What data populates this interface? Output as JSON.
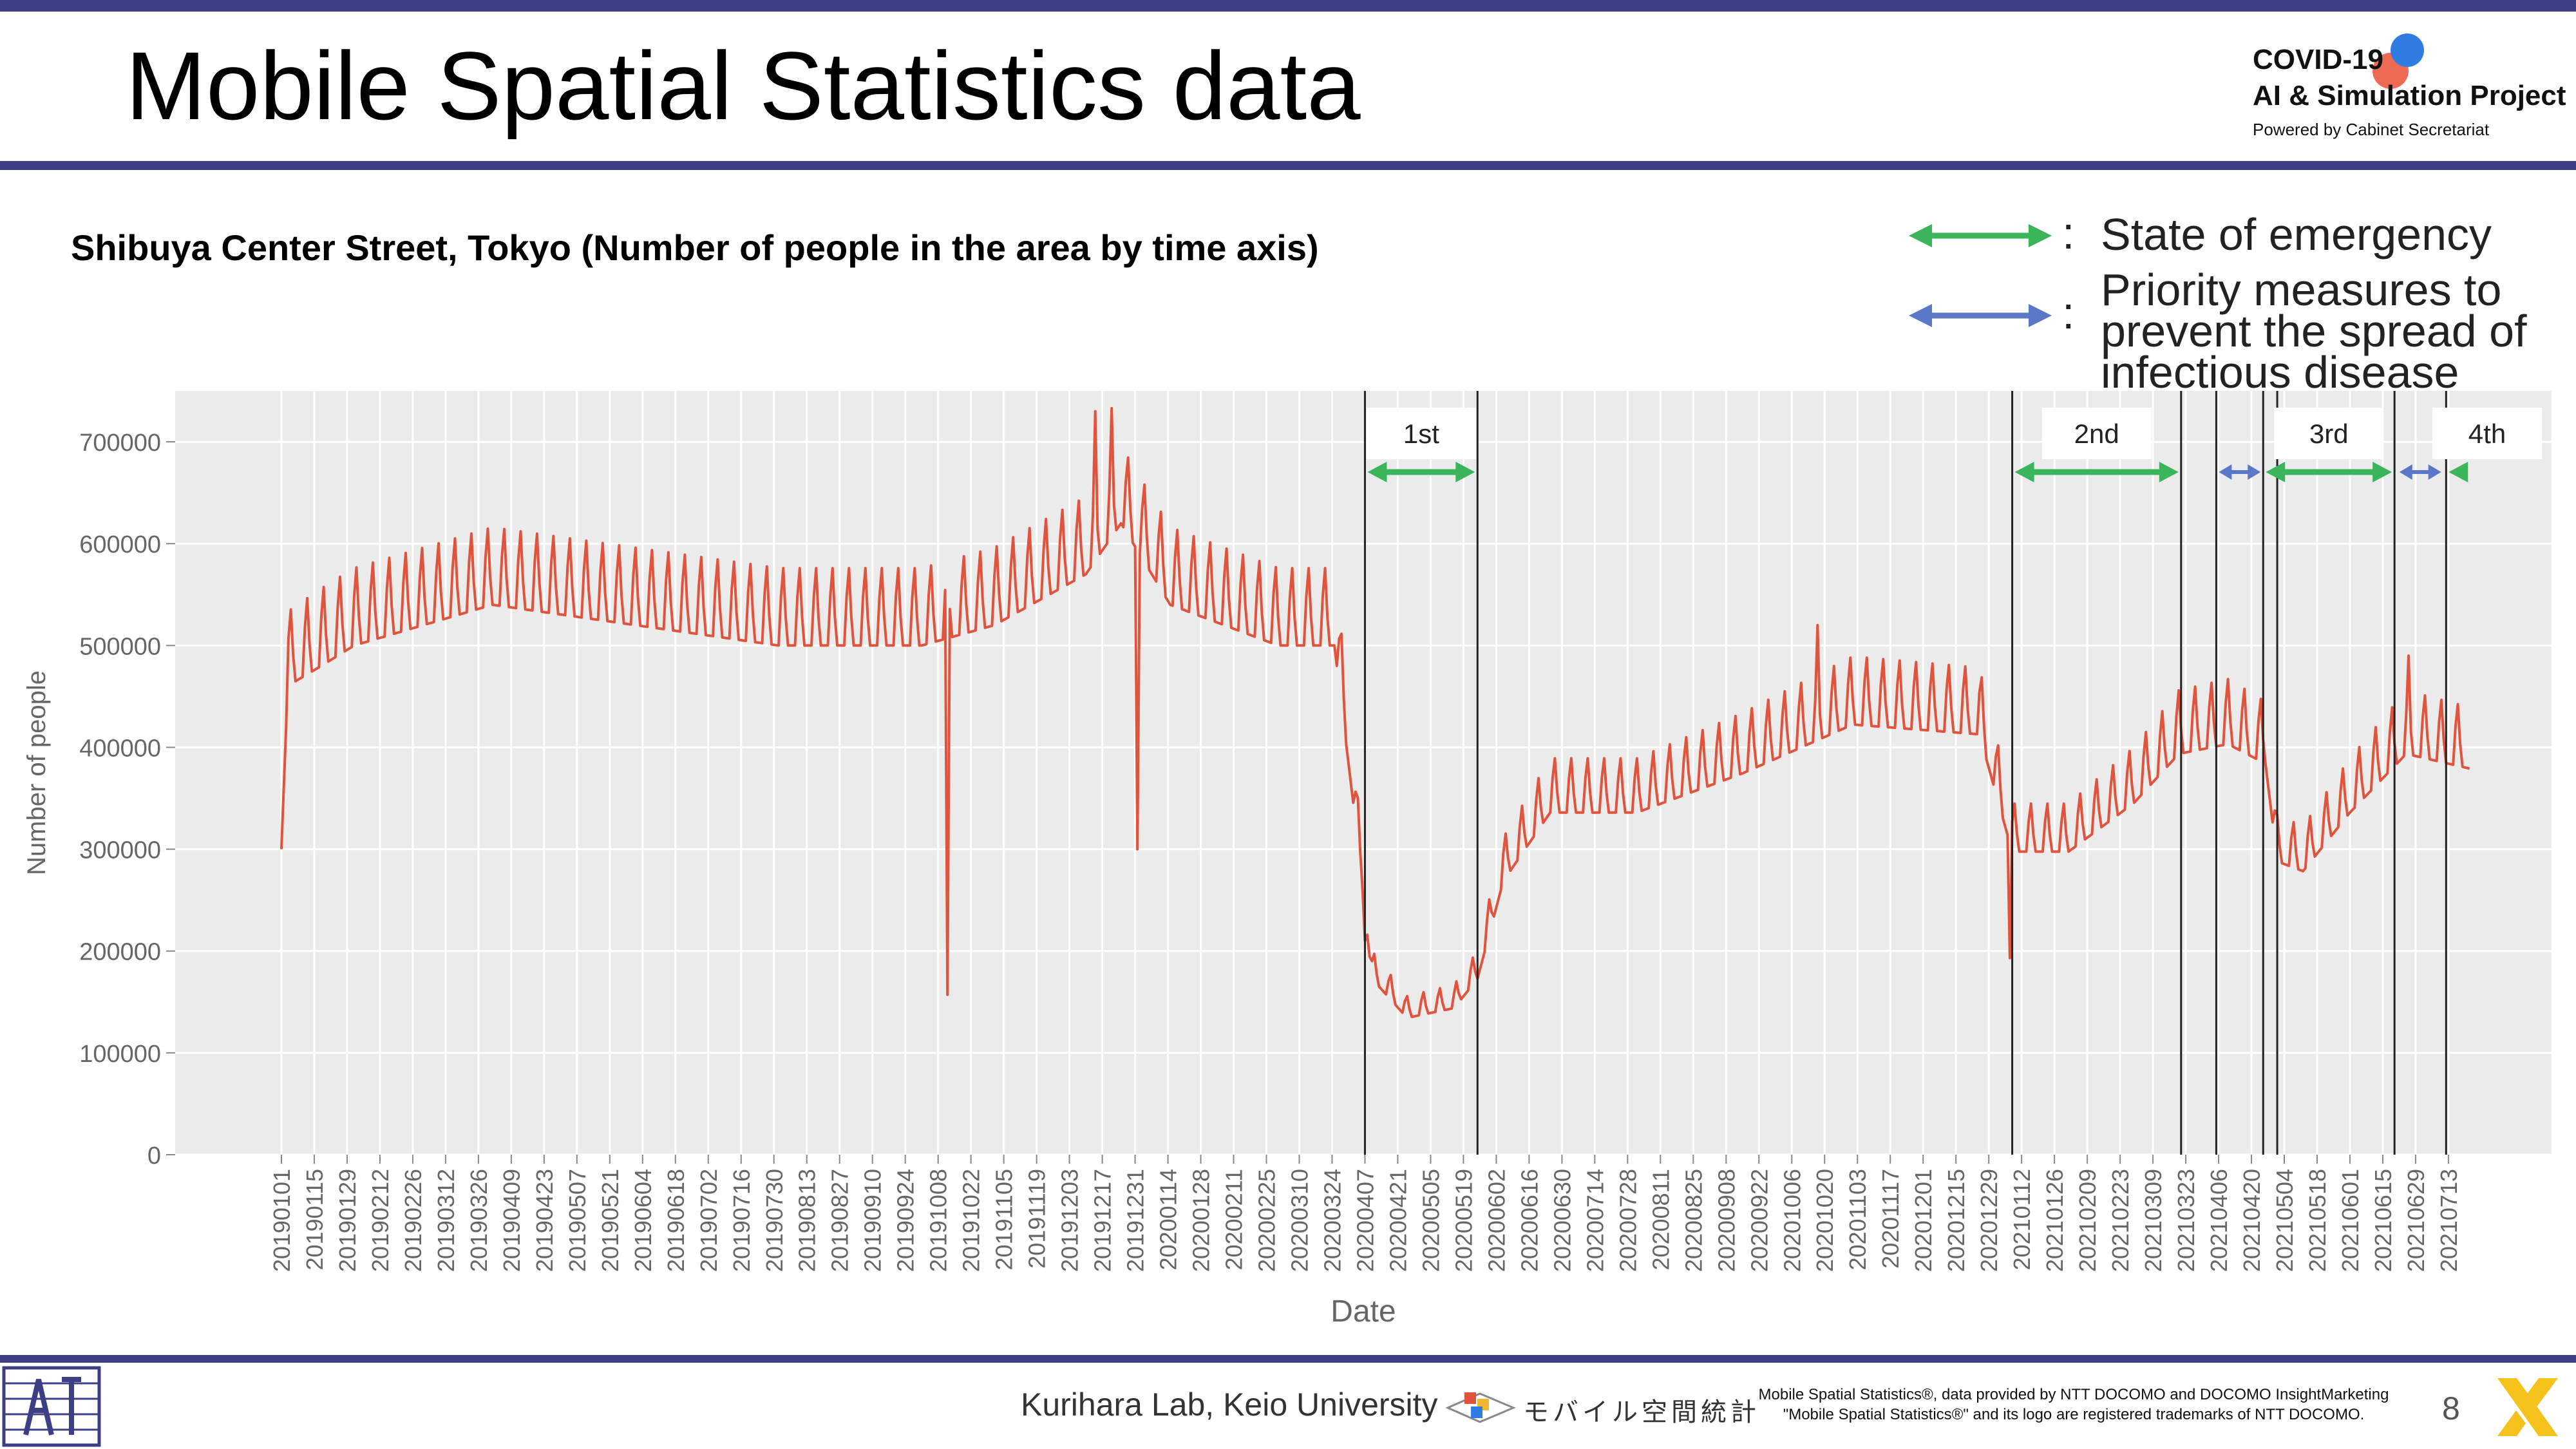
{
  "header": {
    "title": "Mobile Spatial Statistics data",
    "logo_line1": "COVID-19",
    "logo_line2": "AI & Simulation Project",
    "logo_line3": "Powered by Cabinet Secretariat"
  },
  "subtitle": "Shibuya Center Street, Tokyo (Number of people in the area by time axis)",
  "legend": {
    "colon": ":",
    "emergency_label": "State of emergency",
    "priority_label_lines": [
      "Priority measures to",
      "prevent the spread of",
      "infectious disease"
    ],
    "emergency_color": "#3bb55a",
    "priority_color": "#5a78c7"
  },
  "footer": {
    "lab": "Kurihara Lab, Keio University",
    "jp_logo_text": "モバイル空間統計",
    "note_line1": "Mobile Spatial Statistics®, data provided by NTT DOCOMO and DOCOMO InsightMarketing",
    "note_line2": "\"Mobile Spatial Statistics®\" and its logo are registered trademarks of NTT DOCOMO.",
    "page_number": "8"
  },
  "chart_data": {
    "type": "line",
    "title": "Shibuya Center Street, Tokyo (Number of people in the area by time axis)",
    "xlabel": "Date",
    "ylabel": "Number of people",
    "ylim": [
      0,
      750000
    ],
    "yticks": [
      0,
      100000,
      200000,
      300000,
      400000,
      500000,
      600000,
      700000
    ],
    "ytick_labels": [
      "0",
      "100000",
      "200000",
      "300000",
      "400000",
      "500000",
      "600000",
      "700000"
    ],
    "x_start": "20190101",
    "x_end": "20210722",
    "xtick_labels": [
      "20190101",
      "20190115",
      "20190129",
      "20190212",
      "20190226",
      "20190312",
      "20190326",
      "20190409",
      "20190423",
      "20190507",
      "20190521",
      "20190604",
      "20190618",
      "20190702",
      "20190716",
      "20190730",
      "20190813",
      "20190827",
      "20190910",
      "20190924",
      "20191008",
      "20191022",
      "20191105",
      "20191119",
      "20191203",
      "20191217",
      "20191231",
      "20200114",
      "20200128",
      "20200211",
      "20200225",
      "20200310",
      "20200324",
      "20200407",
      "20200421",
      "20200505",
      "20200519",
      "20200602",
      "20200616",
      "20200630",
      "20200714",
      "20200728",
      "20200811",
      "20200825",
      "20200908",
      "20200922",
      "20201006",
      "20201020",
      "20201103",
      "20201117",
      "20201201",
      "20201215",
      "20201229",
      "20210112",
      "20210126",
      "20210209",
      "20210223",
      "20210309",
      "20210323",
      "20210406",
      "20210420",
      "20210504",
      "20210518",
      "20210601",
      "20210615",
      "20210629",
      "20210713"
    ],
    "line_color": "#e0533d",
    "background": "#ebebeb",
    "grid": true,
    "series_anchor_points": [
      {
        "date": "20190101",
        "value": 300000
      },
      {
        "date": "20190104",
        "value": 480000
      },
      {
        "date": "20190201",
        "value": 520000
      },
      {
        "date": "20190401",
        "value": 560000
      },
      {
        "date": "20190601",
        "value": 540000
      },
      {
        "date": "20190801",
        "value": 520000
      },
      {
        "date": "20191001",
        "value": 520000
      },
      {
        "date": "20191101",
        "value": 540000
      },
      {
        "date": "20191210",
        "value": 590000
      },
      {
        "date": "20191225",
        "value": 640000
      },
      {
        "date": "20200115",
        "value": 560000
      },
      {
        "date": "20200301",
        "value": 520000
      },
      {
        "date": "20200325",
        "value": 520000
      },
      {
        "date": "20200402",
        "value": 360000
      },
      {
        "date": "20200410",
        "value": 180000
      },
      {
        "date": "20200425",
        "value": 140000
      },
      {
        "date": "20200515",
        "value": 150000
      },
      {
        "date": "20200525",
        "value": 180000
      },
      {
        "date": "20200605",
        "value": 280000
      },
      {
        "date": "20200625",
        "value": 350000
      },
      {
        "date": "20200801",
        "value": 350000
      },
      {
        "date": "20200915",
        "value": 390000
      },
      {
        "date": "20201101",
        "value": 440000
      },
      {
        "date": "20201225",
        "value": 430000
      },
      {
        "date": "20210108",
        "value": 310000
      },
      {
        "date": "20210201",
        "value": 310000
      },
      {
        "date": "20210301",
        "value": 360000
      },
      {
        "date": "20210320",
        "value": 410000
      },
      {
        "date": "20210410",
        "value": 420000
      },
      {
        "date": "20210426",
        "value": 400000
      },
      {
        "date": "20210501",
        "value": 300000
      },
      {
        "date": "20210512",
        "value": 290000
      },
      {
        "date": "20210601",
        "value": 350000
      },
      {
        "date": "20210625",
        "value": 410000
      },
      {
        "date": "20210722",
        "value": 395000
      }
    ],
    "series_spikes": [
      {
        "date": "20191012",
        "value": 157000
      },
      {
        "date": "20200101",
        "value": 300000
      },
      {
        "date": "20210107",
        "value": 193000
      },
      {
        "date": "20200407",
        "value": 210000
      }
    ],
    "series_peaks": [
      {
        "date": "20191221",
        "value": 733000
      },
      {
        "date": "20191214",
        "value": 730000
      },
      {
        "date": "20201017",
        "value": 520000
      },
      {
        "date": "20210626",
        "value": 490000
      }
    ],
    "weekly_amplitude": 80000,
    "period_lines": [
      "20200407",
      "20200525",
      "20210108",
      "20210321",
      "20210405",
      "20210425",
      "20210501",
      "20210620",
      "20210712"
    ],
    "periods": [
      {
        "label": "1st",
        "type": "emergency",
        "start": "20200407",
        "end": "20200525"
      },
      {
        "label": "2nd",
        "type": "emergency",
        "start": "20210108",
        "end": "20210321"
      },
      {
        "label": "",
        "type": "priority",
        "start": "20210405",
        "end": "20210425"
      },
      {
        "label": "3rd",
        "type": "emergency",
        "start": "20210425",
        "end": "20210620"
      },
      {
        "label": "",
        "type": "priority",
        "start": "20210621",
        "end": "20210711"
      },
      {
        "label": "4th",
        "type": "emergency",
        "start": "20210712",
        "end": "20210731"
      }
    ]
  }
}
